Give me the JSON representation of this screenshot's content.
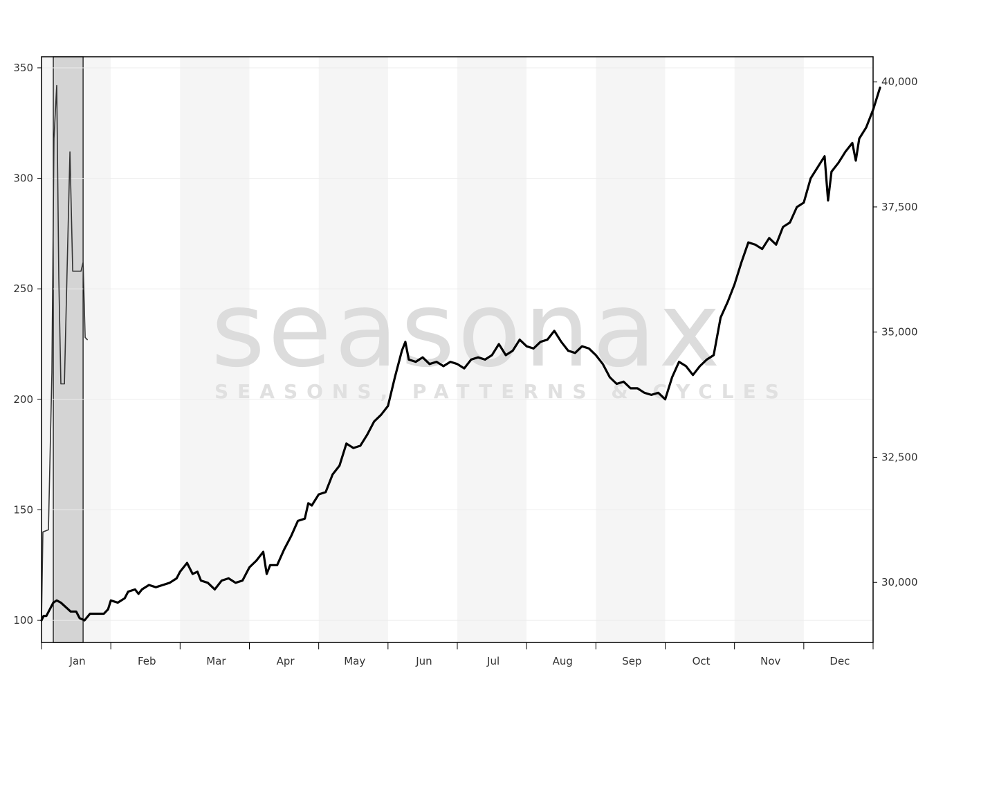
{
  "watermark": {
    "brand": "seasonax",
    "tagline": "SEASONS, PATTERNS & CYCLES"
  },
  "chart_data": {
    "type": "line",
    "title": "",
    "xlabel": "",
    "ylabel": "",
    "months": [
      "Jan",
      "Feb",
      "Mar",
      "Apr",
      "May",
      "Jun",
      "Jul",
      "Aug",
      "Sep",
      "Oct",
      "Nov",
      "Dec"
    ],
    "y_left": {
      "ylim": [
        90,
        355
      ],
      "ticks": [
        100,
        150,
        200,
        250,
        300,
        350
      ],
      "tick_labels": [
        "100",
        "150",
        "200",
        "250",
        "300",
        "350"
      ]
    },
    "y_right": {
      "ylim": [
        28800,
        40500
      ],
      "ticks": [
        30000,
        32500,
        35000,
        37500,
        40000
      ],
      "tick_labels": [
        "30,000",
        "32,500",
        "35,000",
        "37,500",
        "40,000"
      ]
    },
    "highlight_range": {
      "from": 0.17,
      "to": 0.6,
      "unit": "month-index"
    },
    "grid": true,
    "series": [
      {
        "axis": "left",
        "style": "thick",
        "points": [
          [
            0,
            100
          ],
          [
            0.03,
            102
          ],
          [
            0.07,
            102
          ],
          [
            0.12,
            105
          ],
          [
            0.17,
            108
          ],
          [
            0.22,
            109
          ],
          [
            0.28,
            108
          ],
          [
            0.35,
            106
          ],
          [
            0.42,
            104
          ],
          [
            0.5,
            104
          ],
          [
            0.55,
            101
          ],
          [
            0.62,
            100
          ],
          [
            0.7,
            103
          ],
          [
            0.8,
            103
          ],
          [
            0.9,
            103
          ],
          [
            0.96,
            105
          ],
          [
            1.0,
            109
          ],
          [
            1.1,
            108
          ],
          [
            1.2,
            110
          ],
          [
            1.25,
            113
          ],
          [
            1.35,
            114
          ],
          [
            1.4,
            112
          ],
          [
            1.45,
            114
          ],
          [
            1.55,
            116
          ],
          [
            1.65,
            115
          ],
          [
            1.75,
            116
          ],
          [
            1.85,
            117
          ],
          [
            1.95,
            119
          ],
          [
            2.0,
            122
          ],
          [
            2.1,
            126
          ],
          [
            2.18,
            121
          ],
          [
            2.25,
            122
          ],
          [
            2.3,
            118
          ],
          [
            2.4,
            117
          ],
          [
            2.5,
            114
          ],
          [
            2.6,
            118
          ],
          [
            2.7,
            119
          ],
          [
            2.8,
            117
          ],
          [
            2.9,
            118
          ],
          [
            3.0,
            124
          ],
          [
            3.1,
            127
          ],
          [
            3.2,
            131
          ],
          [
            3.25,
            121
          ],
          [
            3.3,
            125
          ],
          [
            3.4,
            125
          ],
          [
            3.5,
            132
          ],
          [
            3.6,
            138
          ],
          [
            3.7,
            145
          ],
          [
            3.8,
            146
          ],
          [
            3.85,
            153
          ],
          [
            3.9,
            152
          ],
          [
            4.0,
            157
          ],
          [
            4.1,
            158
          ],
          [
            4.2,
            166
          ],
          [
            4.3,
            170
          ],
          [
            4.4,
            180
          ],
          [
            4.5,
            178
          ],
          [
            4.6,
            179
          ],
          [
            4.7,
            184
          ],
          [
            4.8,
            190
          ],
          [
            4.9,
            193
          ],
          [
            5.0,
            197
          ],
          [
            5.1,
            210
          ],
          [
            5.2,
            222
          ],
          [
            5.25,
            226
          ],
          [
            5.3,
            218
          ],
          [
            5.4,
            217
          ],
          [
            5.5,
            219
          ],
          [
            5.6,
            216
          ],
          [
            5.7,
            217
          ],
          [
            5.8,
            215
          ],
          [
            5.9,
            217
          ],
          [
            6.0,
            216
          ],
          [
            6.1,
            214
          ],
          [
            6.2,
            218
          ],
          [
            6.3,
            219
          ],
          [
            6.4,
            218
          ],
          [
            6.5,
            220
          ],
          [
            6.6,
            225
          ],
          [
            6.7,
            220
          ],
          [
            6.8,
            222
          ],
          [
            6.9,
            227
          ],
          [
            7.0,
            224
          ],
          [
            7.1,
            223
          ],
          [
            7.2,
            226
          ],
          [
            7.3,
            227
          ],
          [
            7.4,
            231
          ],
          [
            7.5,
            226
          ],
          [
            7.6,
            222
          ],
          [
            7.7,
            221
          ],
          [
            7.8,
            224
          ],
          [
            7.9,
            223
          ],
          [
            8.0,
            220
          ],
          [
            8.1,
            216
          ],
          [
            8.2,
            210
          ],
          [
            8.3,
            207
          ],
          [
            8.4,
            208
          ],
          [
            8.5,
            205
          ],
          [
            8.6,
            205
          ],
          [
            8.7,
            203
          ],
          [
            8.8,
            202
          ],
          [
            8.9,
            203
          ],
          [
            9.0,
            200
          ],
          [
            9.1,
            210
          ],
          [
            9.2,
            217
          ],
          [
            9.3,
            215
          ],
          [
            9.4,
            211
          ],
          [
            9.5,
            215
          ],
          [
            9.6,
            218
          ],
          [
            9.7,
            220
          ],
          [
            9.8,
            237
          ],
          [
            9.9,
            244
          ],
          [
            10.0,
            252
          ],
          [
            10.1,
            262
          ],
          [
            10.2,
            271
          ],
          [
            10.3,
            270
          ],
          [
            10.4,
            268
          ],
          [
            10.5,
            273
          ],
          [
            10.6,
            270
          ],
          [
            10.7,
            278
          ],
          [
            10.8,
            280
          ],
          [
            10.9,
            287
          ],
          [
            11.0,
            289
          ],
          [
            11.1,
            300
          ],
          [
            11.2,
            305
          ],
          [
            11.3,
            310
          ],
          [
            11.35,
            290
          ],
          [
            11.4,
            303
          ],
          [
            11.5,
            307
          ],
          [
            11.6,
            312
          ],
          [
            11.7,
            316
          ],
          [
            11.75,
            308
          ],
          [
            11.8,
            318
          ],
          [
            11.9,
            323
          ],
          [
            12.0,
            331
          ],
          [
            12.05,
            336
          ],
          [
            12.1,
            341
          ]
        ]
      },
      {
        "axis": "left",
        "style": "thin",
        "points": [
          [
            0,
            100
          ],
          [
            0.02,
            140
          ],
          [
            0.1,
            141
          ],
          [
            0.15,
            212
          ],
          [
            0.18,
            318
          ],
          [
            0.22,
            342
          ],
          [
            0.25,
            255
          ],
          [
            0.28,
            207
          ],
          [
            0.33,
            207
          ],
          [
            0.37,
            260
          ],
          [
            0.41,
            312
          ],
          [
            0.45,
            258
          ],
          [
            0.5,
            258
          ],
          [
            0.57,
            258
          ],
          [
            0.6,
            262
          ],
          [
            0.63,
            228
          ],
          [
            0.66,
            227
          ]
        ]
      }
    ]
  }
}
